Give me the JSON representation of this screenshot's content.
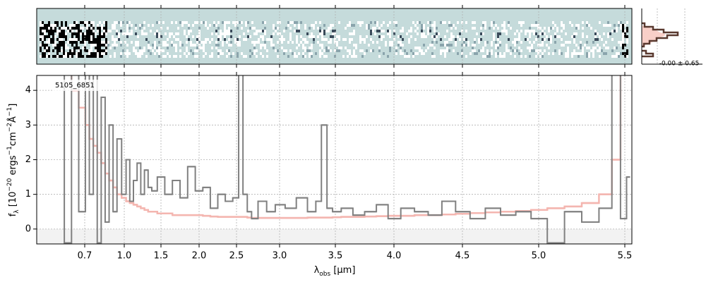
{
  "chart_data": {
    "type": "step",
    "annotation": "5105_6851",
    "xlabel": [
      "λ",
      "obs",
      " [μm]"
    ],
    "ylabel": [
      "f",
      "λ",
      " [10",
      "−20",
      " ergs",
      "−1",
      "cm",
      "−2",
      "Å",
      "−1",
      "]"
    ],
    "hist_label": "-0.00 ± 0.65",
    "xlim": [
      0.5,
      5.54
    ],
    "xticks": [
      0.7,
      {
        "value": 1.0,
        "label": "1.0"
      },
      1.5,
      {
        "value": 2.0,
        "label": "2.0"
      },
      2.5,
      {
        "value": 3.0,
        "label": "3.0"
      },
      3.5,
      {
        "value": 4.0,
        "label": "4.0"
      },
      4.5,
      {
        "value": 5.0,
        "label": "5.0"
      },
      5.5
    ],
    "ylim": [
      -0.43,
      4.43
    ],
    "yticks": [
      0,
      1,
      2,
      3,
      4
    ],
    "grid": true,
    "x": [
      0.6,
      0.63,
      0.66,
      0.69,
      0.72,
      0.75,
      0.78,
      0.81,
      0.84,
      0.87,
      0.9,
      0.93,
      0.96,
      1.0,
      1.05,
      1.1,
      1.15,
      1.2,
      1.25,
      1.3,
      1.35,
      1.4,
      1.5,
      1.6,
      1.7,
      1.8,
      1.9,
      2.0,
      2.1,
      2.2,
      2.3,
      2.4,
      2.5,
      2.55,
      2.6,
      2.65,
      2.7,
      2.8,
      2.9,
      3.0,
      3.1,
      3.2,
      3.3,
      3.35,
      3.4,
      3.45,
      3.5,
      3.6,
      3.7,
      3.8,
      3.9,
      4.0,
      4.1,
      4.2,
      4.3,
      4.4,
      4.5,
      4.6,
      4.7,
      4.8,
      4.9,
      5.0,
      5.1,
      5.2,
      5.3,
      5.4,
      5.45,
      5.5,
      5.52
    ],
    "series": [
      {
        "color": "#f4b6b0",
        "values": [
          4.5,
          4.5,
          4.0,
          3.5,
          3.0,
          2.6,
          2.4,
          2.2,
          1.9,
          1.6,
          1.4,
          1.2,
          1.0,
          0.9,
          0.8,
          0.75,
          0.7,
          0.65,
          0.6,
          0.55,
          0.5,
          0.5,
          0.45,
          0.45,
          0.4,
          0.4,
          0.4,
          0.4,
          0.38,
          0.36,
          0.35,
          0.35,
          0.35,
          0.35,
          0.35,
          0.33,
          0.32,
          0.32,
          0.32,
          0.32,
          0.32,
          0.32,
          0.33,
          0.33,
          0.33,
          0.33,
          0.34,
          0.35,
          0.35,
          0.36,
          0.37,
          0.38,
          0.38,
          0.4,
          0.4,
          0.42,
          0.44,
          0.46,
          0.48,
          0.5,
          0.52,
          0.55,
          0.6,
          0.65,
          0.75,
          1.0,
          2.0,
          4.5,
          4.5
        ]
      },
      {
        "color": "#808080",
        "values": [
          4.5,
          -0.4,
          4.5,
          0.5,
          4.5,
          1.0,
          4.5,
          -0.4,
          3.8,
          0.2,
          3.0,
          0.5,
          2.6,
          1.0,
          2.0,
          0.8,
          1.4,
          1.9,
          1.0,
          1.7,
          1.2,
          1.1,
          1.5,
          1.0,
          1.4,
          0.9,
          1.8,
          1.1,
          1.2,
          0.6,
          1.0,
          0.8,
          0.9,
          4.5,
          1.0,
          0.5,
          0.3,
          0.8,
          0.5,
          0.7,
          0.6,
          0.9,
          0.5,
          0.8,
          3.0,
          0.6,
          0.5,
          0.6,
          0.4,
          0.5,
          0.7,
          0.3,
          0.6,
          0.5,
          0.4,
          0.8,
          0.5,
          0.3,
          0.6,
          0.4,
          0.5,
          0.3,
          -0.4,
          0.5,
          0.2,
          0.6,
          4.5,
          0.3,
          1.5
        ]
      }
    ]
  }
}
